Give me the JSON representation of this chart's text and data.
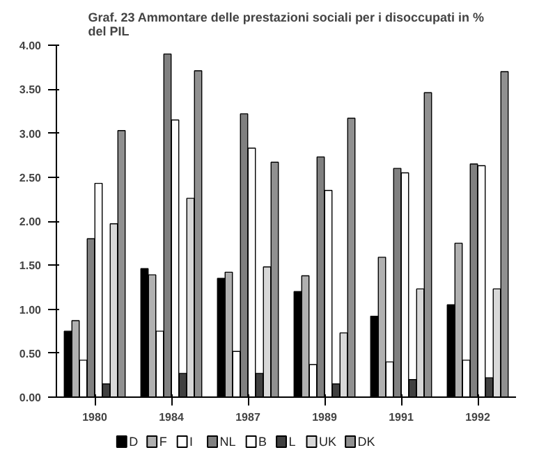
{
  "chart_data": {
    "type": "bar",
    "title": "Graf. 23 Ammontare delle prestazioni sociali per i disoccupati in %\ndel PIL",
    "categories": [
      "1980",
      "1984",
      "1987",
      "1989",
      "1991",
      "1992"
    ],
    "series": [
      {
        "name": "D",
        "color": "#000000",
        "values": [
          0.75,
          1.46,
          1.35,
          1.2,
          0.92,
          1.05
        ]
      },
      {
        "name": "F",
        "color": "#b0b0b0",
        "values": [
          0.87,
          1.39,
          1.42,
          1.38,
          1.59,
          1.75
        ]
      },
      {
        "name": "I",
        "color": "#ffffff",
        "values": [
          0.42,
          0.75,
          0.52,
          0.37,
          0.4,
          0.42
        ]
      },
      {
        "name": "NL",
        "color": "#808080",
        "values": [
          1.8,
          3.9,
          3.22,
          2.73,
          2.6,
          2.65
        ]
      },
      {
        "name": "B",
        "color": "#fdfdfd",
        "values": [
          2.43,
          3.15,
          2.83,
          2.35,
          2.55,
          2.63
        ]
      },
      {
        "name": "L",
        "color": "#404040",
        "values": [
          0.15,
          0.27,
          0.27,
          0.15,
          0.2,
          0.22
        ]
      },
      {
        "name": "UK",
        "color": "#d8d8d8",
        "values": [
          1.97,
          2.26,
          1.48,
          0.73,
          1.23,
          1.23
        ]
      },
      {
        "name": "DK",
        "color": "#909090",
        "values": [
          3.03,
          3.71,
          2.67,
          3.17,
          3.46,
          3.7
        ]
      }
    ],
    "ylim": [
      0,
      4
    ],
    "yticks": [
      {
        "value": 0,
        "label": "0.00"
      },
      {
        "value": 0.5,
        "label": "0.50"
      },
      {
        "value": 1,
        "label": "1.00"
      },
      {
        "value": 1.5,
        "label": "1.50"
      },
      {
        "value": 2,
        "label": "2.00"
      },
      {
        "value": 2.5,
        "label": "2.50"
      },
      {
        "value": 3,
        "label": "3.00"
      },
      {
        "value": 3.5,
        "label": "3.50"
      },
      {
        "value": 4,
        "label": "4.00"
      }
    ],
    "grid": false,
    "legend": "bottom"
  }
}
